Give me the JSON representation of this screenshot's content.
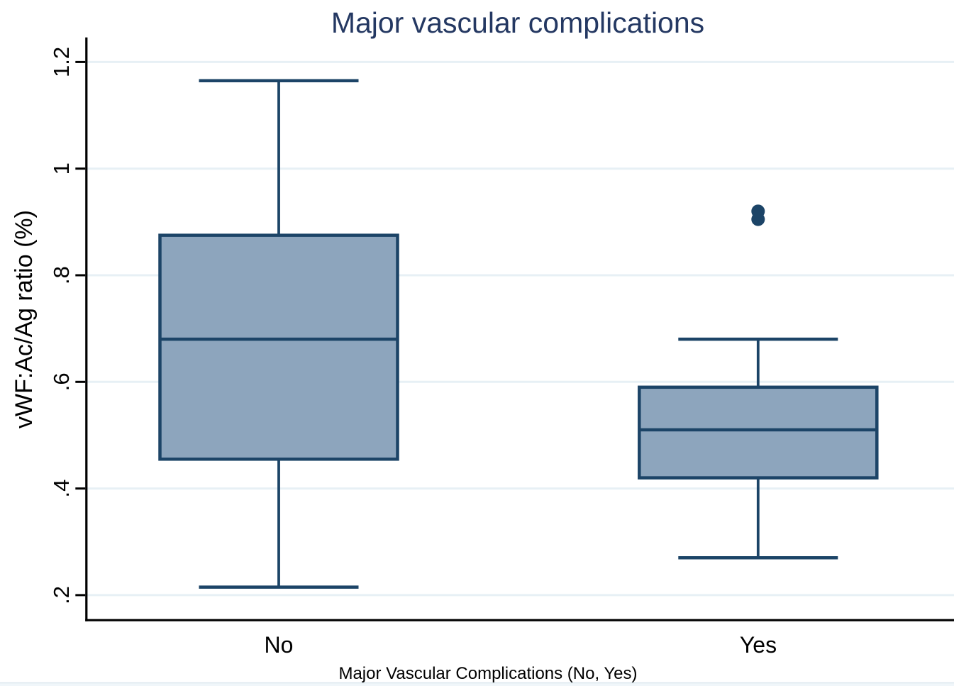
{
  "chart_data": {
    "type": "boxplot",
    "title": "Major vascular complications",
    "ylabel": "vWF:Ac/Ag ratio (%)",
    "xlabel": "Major Vascular Complications (No, Yes)",
    "categories": [
      "No",
      "Yes"
    ],
    "y_ticks": [
      {
        "value": 0.2,
        "label": ".2"
      },
      {
        "value": 0.4,
        "label": ".4"
      },
      {
        "value": 0.6,
        "label": ".6"
      },
      {
        "value": 0.8,
        "label": ".8"
      },
      {
        "value": 1.0,
        "label": "1"
      },
      {
        "value": 1.2,
        "label": "1.2"
      }
    ],
    "ylim": [
      0.15,
      1.25
    ],
    "grid": true,
    "legend": "none",
    "series": [
      {
        "category": "No",
        "lower_whisker": 0.215,
        "q1": 0.455,
        "median": 0.68,
        "q3": 0.875,
        "upper_whisker": 1.165,
        "outliers": []
      },
      {
        "category": "Yes",
        "lower_whisker": 0.27,
        "q1": 0.42,
        "median": 0.51,
        "q3": 0.59,
        "upper_whisker": 0.68,
        "outliers": [
          0.905,
          0.92
        ]
      }
    ],
    "colors": {
      "box_fill": "#8da5bd",
      "box_border": "#1c4467",
      "median": "#1c4467",
      "whisker": "#1c4467",
      "outlier": "#1c4467",
      "title": "#243862",
      "axis": "#000000",
      "gridline": "#e7f0f5",
      "bottom_strip": "#f0f6fa",
      "bottom_strip_line": "#dce7ee"
    }
  }
}
